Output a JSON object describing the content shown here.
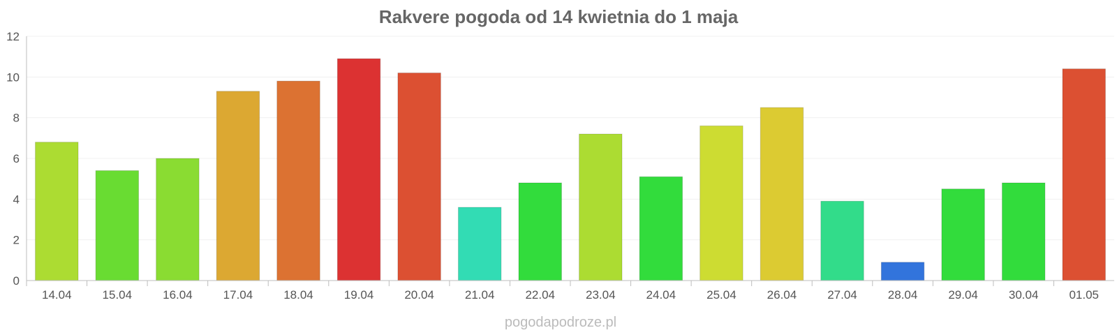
{
  "chart_data": {
    "type": "bar",
    "title": "Rakvere pogoda od 14 kwietnia do 1 maja",
    "xlabel": "",
    "ylabel": "",
    "ylim": [
      0,
      12
    ],
    "yticks": [
      0,
      2,
      4,
      6,
      8,
      10,
      12
    ],
    "grid": true,
    "legend": "none",
    "categories": [
      "14.04",
      "15.04",
      "16.04",
      "17.04",
      "18.04",
      "19.04",
      "20.04",
      "21.04",
      "22.04",
      "23.04",
      "24.04",
      "25.04",
      "26.04",
      "27.04",
      "28.04",
      "29.04",
      "30.04",
      "01.05"
    ],
    "values": [
      6.8,
      5.4,
      6.0,
      9.3,
      9.8,
      10.9,
      10.2,
      3.6,
      4.8,
      7.2,
      5.1,
      7.6,
      8.5,
      3.9,
      0.9,
      4.5,
      4.8,
      10.4
    ],
    "colors": [
      "#acdc32",
      "#69dc32",
      "#8adc32",
      "#dca832",
      "#dc7232",
      "#dc3232",
      "#dc5032",
      "#32dcb4",
      "#32dc3c",
      "#acdc32",
      "#32dc3c",
      "#cddc32",
      "#dccb32",
      "#32dc8a",
      "#3274dc",
      "#32dc3c",
      "#32dc3c",
      "#dc5032"
    ]
  },
  "watermark": "pogodapodroze.pl"
}
